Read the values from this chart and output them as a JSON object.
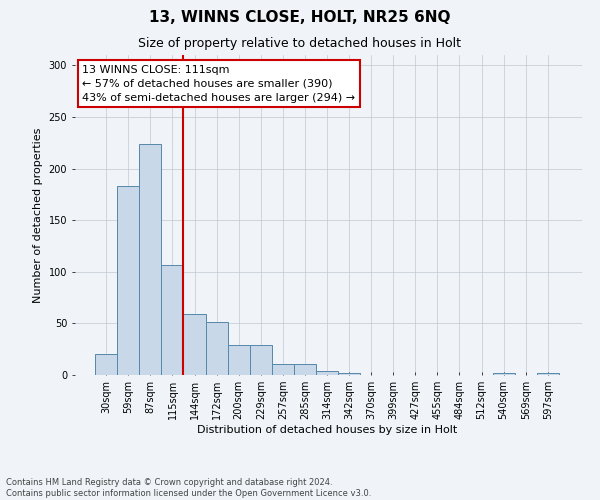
{
  "title1": "13, WINNS CLOSE, HOLT, NR25 6NQ",
  "title2": "Size of property relative to detached houses in Holt",
  "xlabel": "Distribution of detached houses by size in Holt",
  "ylabel": "Number of detached properties",
  "annotation_line1": "13 WINNS CLOSE: 111sqm",
  "annotation_line2": "← 57% of detached houses are smaller (390)",
  "annotation_line3": "43% of semi-detached houses are larger (294) →",
  "footer1": "Contains HM Land Registry data © Crown copyright and database right 2024.",
  "footer2": "Contains public sector information licensed under the Open Government Licence v3.0.",
  "bar_color": "#c8d8e8",
  "bar_edge_color": "#5588aa",
  "vline_color": "#cc0000",
  "vline_x_index": 3,
  "categories": [
    "30sqm",
    "59sqm",
    "87sqm",
    "115sqm",
    "144sqm",
    "172sqm",
    "200sqm",
    "229sqm",
    "257sqm",
    "285sqm",
    "314sqm",
    "342sqm",
    "370sqm",
    "399sqm",
    "427sqm",
    "455sqm",
    "484sqm",
    "512sqm",
    "540sqm",
    "569sqm",
    "597sqm"
  ],
  "values": [
    20,
    183,
    224,
    107,
    59,
    51,
    29,
    29,
    11,
    11,
    4,
    2,
    0,
    0,
    0,
    0,
    0,
    0,
    2,
    0,
    2
  ],
  "ylim": [
    0,
    310
  ],
  "yticks": [
    0,
    50,
    100,
    150,
    200,
    250,
    300
  ],
  "background_color": "#f0f4f8",
  "grid_color": "#c0c8d0",
  "annotation_box_color": "#ffffff",
  "annotation_box_edge": "#cc0000",
  "title1_fontsize": 11,
  "title2_fontsize": 9,
  "annotation_fontsize": 8,
  "axis_label_fontsize": 8,
  "ylabel_fontsize": 8,
  "tick_fontsize": 7,
  "footer_fontsize": 6
}
